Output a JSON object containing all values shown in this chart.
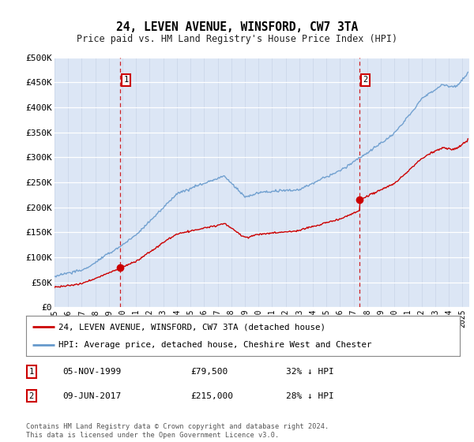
{
  "title": "24, LEVEN AVENUE, WINSFORD, CW7 3TA",
  "subtitle": "Price paid vs. HM Land Registry's House Price Index (HPI)",
  "ylim": [
    0,
    500000
  ],
  "yticks": [
    0,
    50000,
    100000,
    150000,
    200000,
    250000,
    300000,
    350000,
    400000,
    450000,
    500000
  ],
  "ytick_labels": [
    "£0",
    "£50K",
    "£100K",
    "£150K",
    "£200K",
    "£250K",
    "£300K",
    "£350K",
    "£400K",
    "£450K",
    "£500K"
  ],
  "bg_color": "#dce6f5",
  "fig_bg": "#ffffff",
  "hpi_color": "#6699cc",
  "price_color": "#cc0000",
  "marker1_date": 1999.84,
  "marker1_price": 79500,
  "marker1_label": "05-NOV-1999",
  "marker1_amount": "£79,500",
  "marker1_pct": "32% ↓ HPI",
  "marker2_date": 2017.44,
  "marker2_price": 215000,
  "marker2_label": "09-JUN-2017",
  "marker2_amount": "£215,000",
  "marker2_pct": "28% ↓ HPI",
  "legend_line1": "24, LEVEN AVENUE, WINSFORD, CW7 3TA (detached house)",
  "legend_line2": "HPI: Average price, detached house, Cheshire West and Chester",
  "footer": "Contains HM Land Registry data © Crown copyright and database right 2024.\nThis data is licensed under the Open Government Licence v3.0.",
  "xmin": 1995.0,
  "xmax": 2025.5
}
